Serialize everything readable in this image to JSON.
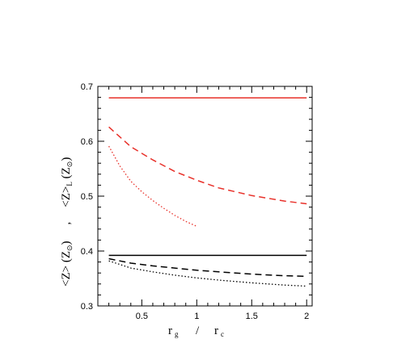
{
  "chart_data": {
    "type": "line",
    "xlabel": {
      "main_1": "r",
      "sub_1": "g",
      "sep": "/",
      "main_2": "r",
      "sub_2": "c"
    },
    "ylabel": {
      "part1": "<Z>  (Z",
      "part1_sub": "⊙",
      "part1_end": ")",
      "sep": ",",
      "part2": "<Z>",
      "part2_sub": "L",
      "part2_mid": " (Z",
      "part2_sub2": "⊙",
      "part2_end": ")"
    },
    "xlim": [
      0.1,
      2.05
    ],
    "ylim": [
      0.3,
      0.7
    ],
    "xticks": [
      0.5,
      1,
      1.5,
      2
    ],
    "xtick_labels": [
      "0.5",
      "1",
      "1.5",
      "2"
    ],
    "yticks": [
      0.3,
      0.4,
      0.5,
      0.6,
      0.7
    ],
    "ytick_labels": [
      "0.3",
      "0.4",
      "0.5",
      "0.6",
      "0.7"
    ],
    "grid": false,
    "series": [
      {
        "color": "#e8312a",
        "style": "solid",
        "x": [
          0.2,
          2.0
        ],
        "y": [
          0.679,
          0.679
        ]
      },
      {
        "color": "#e8312a",
        "style": "dashed",
        "x": [
          0.2,
          0.3,
          0.4,
          0.5,
          0.6,
          0.8,
          1.0,
          1.2,
          1.5,
          1.8,
          2.0
        ],
        "y": [
          0.626,
          0.608,
          0.59,
          0.578,
          0.566,
          0.545,
          0.529,
          0.515,
          0.501,
          0.491,
          0.486
        ]
      },
      {
        "color": "#e8312a",
        "style": "dotted",
        "x": [
          0.2,
          0.3,
          0.4,
          0.5,
          0.6,
          0.7,
          0.8,
          0.9,
          1.0
        ],
        "y": [
          0.591,
          0.555,
          0.527,
          0.508,
          0.492,
          0.478,
          0.465,
          0.454,
          0.445
        ]
      },
      {
        "color": "#000000",
        "style": "solid",
        "x": [
          0.2,
          2.0
        ],
        "y": [
          0.392,
          0.392
        ]
      },
      {
        "color": "#000000",
        "style": "dashed",
        "x": [
          0.2,
          0.4,
          0.6,
          0.8,
          1.0,
          1.2,
          1.5,
          1.8,
          2.0
        ],
        "y": [
          0.386,
          0.378,
          0.373,
          0.369,
          0.365,
          0.362,
          0.358,
          0.355,
          0.354
        ]
      },
      {
        "color": "#000000",
        "style": "dotted",
        "x": [
          0.2,
          0.4,
          0.6,
          0.8,
          1.0,
          1.2,
          1.5,
          1.8,
          2.0
        ],
        "y": [
          0.382,
          0.369,
          0.362,
          0.356,
          0.351,
          0.347,
          0.342,
          0.338,
          0.336
        ]
      }
    ]
  }
}
